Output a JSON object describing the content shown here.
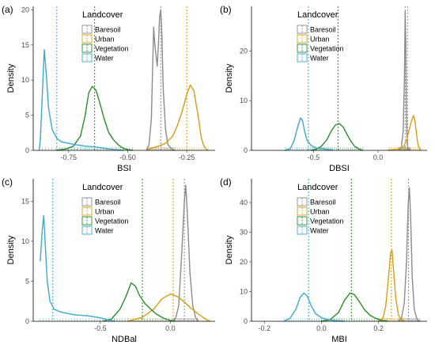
{
  "colors": {
    "Baresoil": "#8c8c8c",
    "Urban": "#d4a017",
    "Vegetation": "#2e8b2e",
    "Water": "#3fa9c9"
  },
  "legend": {
    "title": "Landcover",
    "entries": [
      "Baresoil",
      "Urban",
      "Vegetation",
      "Water"
    ]
  },
  "chart_data": [
    {
      "panel": "(a)",
      "type": "area",
      "xlabel": "BSI",
      "ylabel": "Density",
      "xlim": [
        -0.9,
        -0.13
      ],
      "ylim": [
        0,
        20.5
      ],
      "xticks": [
        -0.75,
        -0.5,
        -0.25
      ],
      "xticklabels": [
        "-0.75",
        "-0.50",
        "-0.25"
      ],
      "yticks": [
        0,
        5,
        10,
        15,
        20
      ],
      "grid": false,
      "legend_position": "top-center",
      "series": [
        {
          "name": "Baresoil",
          "mean": -0.36,
          "points": [
            [
              -0.42,
              0
            ],
            [
              -0.41,
              0.8
            ],
            [
              -0.4,
              4.5
            ],
            [
              -0.395,
              11
            ],
            [
              -0.39,
              17.5
            ],
            [
              -0.385,
              15
            ],
            [
              -0.375,
              12
            ],
            [
              -0.37,
              15
            ],
            [
              -0.365,
              19
            ],
            [
              -0.36,
              20
            ],
            [
              -0.355,
              16
            ],
            [
              -0.35,
              9
            ],
            [
              -0.34,
              3
            ],
            [
              -0.33,
              0.8
            ],
            [
              -0.31,
              0.1
            ],
            [
              -0.3,
              0
            ]
          ]
        },
        {
          "name": "Urban",
          "mean": -0.25,
          "points": [
            [
              -0.42,
              0
            ],
            [
              -0.4,
              0.3
            ],
            [
              -0.37,
              0.6
            ],
            [
              -0.34,
              1
            ],
            [
              -0.31,
              2
            ],
            [
              -0.29,
              3.5
            ],
            [
              -0.27,
              5.5
            ],
            [
              -0.25,
              8
            ],
            [
              -0.235,
              9.3
            ],
            [
              -0.22,
              8.5
            ],
            [
              -0.2,
              4.5
            ],
            [
              -0.19,
              2
            ],
            [
              -0.18,
              0.8
            ],
            [
              -0.17,
              0.2
            ],
            [
              -0.16,
              0
            ]
          ]
        },
        {
          "name": "Vegetation",
          "mean": -0.64,
          "points": [
            [
              -0.8,
              0
            ],
            [
              -0.76,
              0.2
            ],
            [
              -0.73,
              0.6
            ],
            [
              -0.7,
              2
            ],
            [
              -0.68,
              5
            ],
            [
              -0.665,
              8.2
            ],
            [
              -0.65,
              9.1
            ],
            [
              -0.635,
              8.6
            ],
            [
              -0.62,
              7
            ],
            [
              -0.6,
              4.5
            ],
            [
              -0.58,
              2.5
            ],
            [
              -0.56,
              1.5
            ],
            [
              -0.54,
              0.8
            ],
            [
              -0.52,
              0.3
            ],
            [
              -0.5,
              0.1
            ],
            [
              -0.48,
              0
            ]
          ]
        },
        {
          "name": "Water",
          "mean": -0.8,
          "points": [
            [
              -0.875,
              0
            ],
            [
              -0.87,
              1.5
            ],
            [
              -0.86,
              9
            ],
            [
              -0.853,
              14.3
            ],
            [
              -0.845,
              11
            ],
            [
              -0.835,
              6
            ],
            [
              -0.82,
              3
            ],
            [
              -0.8,
              1.7
            ],
            [
              -0.78,
              1.2
            ],
            [
              -0.75,
              1
            ],
            [
              -0.72,
              0.8
            ],
            [
              -0.68,
              0.6
            ],
            [
              -0.64,
              0.5
            ],
            [
              -0.6,
              0.3
            ],
            [
              -0.56,
              0.1
            ],
            [
              -0.52,
              0
            ]
          ]
        }
      ]
    },
    {
      "panel": "(b)",
      "type": "area",
      "xlabel": "DBSI",
      "ylabel": "Density",
      "xlim": [
        -0.98,
        0.38
      ],
      "ylim": [
        0,
        29
      ],
      "xticks": [
        -0.5,
        0.0
      ],
      "xticklabels": [
        "-0.5",
        "0.0"
      ],
      "yticks": [
        0,
        10,
        20
      ],
      "grid": false,
      "legend_position": "top-center",
      "series": [
        {
          "name": "Baresoil",
          "mean": 0.21,
          "points": [
            [
              0.16,
              0
            ],
            [
              0.18,
              0.5
            ],
            [
              0.195,
              4
            ],
            [
              0.205,
              15
            ],
            [
              0.21,
              28
            ],
            [
              0.215,
              22
            ],
            [
              0.22,
              8
            ],
            [
              0.225,
              2
            ],
            [
              0.23,
              0.5
            ],
            [
              0.25,
              0
            ]
          ]
        },
        {
          "name": "Urban",
          "mean": 0.23,
          "points": [
            [
              0.08,
              0
            ],
            [
              0.15,
              0.2
            ],
            [
              0.2,
              0.8
            ],
            [
              0.22,
              2
            ],
            [
              0.24,
              4
            ],
            [
              0.26,
              6
            ],
            [
              0.275,
              7
            ],
            [
              0.285,
              6
            ],
            [
              0.3,
              3
            ],
            [
              0.31,
              1
            ],
            [
              0.33,
              0
            ]
          ]
        },
        {
          "name": "Vegetation",
          "mean": -0.31,
          "points": [
            [
              -0.52,
              0
            ],
            [
              -0.48,
              0.2
            ],
            [
              -0.44,
              0.8
            ],
            [
              -0.4,
              2
            ],
            [
              -0.36,
              4
            ],
            [
              -0.33,
              5.1
            ],
            [
              -0.3,
              5.4
            ],
            [
              -0.27,
              4.7
            ],
            [
              -0.24,
              3.2
            ],
            [
              -0.21,
              1.8
            ],
            [
              -0.18,
              0.8
            ],
            [
              -0.15,
              0.3
            ],
            [
              -0.12,
              0
            ]
          ]
        },
        {
          "name": "Water",
          "mean": -0.54,
          "points": [
            [
              -0.72,
              0
            ],
            [
              -0.68,
              0.3
            ],
            [
              -0.65,
              2
            ],
            [
              -0.62,
              5
            ],
            [
              -0.6,
              6.5
            ],
            [
              -0.585,
              6
            ],
            [
              -0.57,
              4
            ],
            [
              -0.55,
              2
            ],
            [
              -0.52,
              1
            ],
            [
              -0.48,
              0.5
            ],
            [
              -0.42,
              0.3
            ],
            [
              -0.35,
              0
            ]
          ]
        }
      ]
    },
    {
      "panel": "(c)",
      "type": "area",
      "xlabel": "NDBal",
      "ylabel": "Density",
      "xlim": [
        -0.98,
        0.32
      ],
      "ylim": [
        0,
        17.8
      ],
      "xticks": [
        -0.5,
        0.0
      ],
      "xticklabels": [
        "-0.5",
        "0.0"
      ],
      "yticks": [
        0,
        5,
        10,
        15
      ],
      "grid": false,
      "legend_position": "top-center",
      "series": [
        {
          "name": "Baresoil",
          "mean": 0.1,
          "points": [
            [
              0.02,
              0
            ],
            [
              0.04,
              0.5
            ],
            [
              0.06,
              2
            ],
            [
              0.08,
              8
            ],
            [
              0.1,
              15
            ],
            [
              0.11,
              17
            ],
            [
              0.12,
              14
            ],
            [
              0.14,
              6
            ],
            [
              0.16,
              2
            ],
            [
              0.18,
              0.5
            ],
            [
              0.2,
              0
            ]
          ]
        },
        {
          "name": "Urban",
          "mean": 0.02,
          "points": [
            [
              -0.3,
              0
            ],
            [
              -0.2,
              0.5
            ],
            [
              -0.12,
              1.5
            ],
            [
              -0.06,
              2.8
            ],
            [
              0.0,
              3.4
            ],
            [
              0.05,
              3.1
            ],
            [
              0.1,
              2.4
            ],
            [
              0.15,
              1.6
            ],
            [
              0.2,
              0.9
            ],
            [
              0.25,
              0.3
            ],
            [
              0.28,
              0
            ]
          ]
        },
        {
          "name": "Vegetation",
          "mean": -0.2,
          "points": [
            [
              -0.48,
              0
            ],
            [
              -0.42,
              0.3
            ],
            [
              -0.36,
              1.5
            ],
            [
              -0.32,
              3
            ],
            [
              -0.28,
              4.8
            ],
            [
              -0.25,
              4.4
            ],
            [
              -0.22,
              3.2
            ],
            [
              -0.18,
              2.2
            ],
            [
              -0.14,
              1.5
            ],
            [
              -0.1,
              0.9
            ],
            [
              -0.05,
              0.4
            ],
            [
              0.0,
              0.1
            ],
            [
              0.03,
              0
            ]
          ]
        },
        {
          "name": "Water",
          "mean": -0.84,
          "points": [
            [
              -0.93,
              7.5
            ],
            [
              -0.915,
              11.5
            ],
            [
              -0.905,
              13.2
            ],
            [
              -0.895,
              10
            ],
            [
              -0.88,
              5
            ],
            [
              -0.86,
              2.5
            ],
            [
              -0.83,
              1.5
            ],
            [
              -0.79,
              1.2
            ],
            [
              -0.74,
              1
            ],
            [
              -0.68,
              0.8
            ],
            [
              -0.6,
              0.7
            ],
            [
              -0.52,
              0.5
            ],
            [
              -0.45,
              0.2
            ],
            [
              -0.4,
              0
            ]
          ]
        }
      ]
    },
    {
      "panel": "(d)",
      "type": "area",
      "xlabel": "MBI",
      "ylabel": "Density",
      "xlim": [
        -0.245,
        0.37
      ],
      "ylim": [
        0,
        48
      ],
      "xticks": [
        -0.2,
        0.0,
        0.2
      ],
      "xticklabels": [
        "-0.2",
        "0.0",
        "0.2"
      ],
      "yticks": [
        0,
        10,
        20,
        30,
        40
      ],
      "grid": false,
      "legend_position": "top-center",
      "series": [
        {
          "name": "Baresoil",
          "mean": 0.305,
          "points": [
            [
              0.27,
              0
            ],
            [
              0.28,
              1
            ],
            [
              0.29,
              6
            ],
            [
              0.298,
              20
            ],
            [
              0.304,
              40
            ],
            [
              0.308,
              45
            ],
            [
              0.312,
              36
            ],
            [
              0.318,
              15
            ],
            [
              0.325,
              4
            ],
            [
              0.335,
              0.5
            ],
            [
              0.345,
              0
            ]
          ]
        },
        {
          "name": "Urban",
          "mean": 0.245,
          "points": [
            [
              0.2,
              0
            ],
            [
              0.215,
              1
            ],
            [
              0.225,
              5
            ],
            [
              0.235,
              15
            ],
            [
              0.242,
              23
            ],
            [
              0.247,
              24
            ],
            [
              0.252,
              18
            ],
            [
              0.26,
              8
            ],
            [
              0.27,
              2
            ],
            [
              0.28,
              0.5
            ],
            [
              0.29,
              0
            ]
          ]
        },
        {
          "name": "Vegetation",
          "mean": 0.105,
          "points": [
            [
              0.0,
              0
            ],
            [
              0.03,
              0.5
            ],
            [
              0.06,
              3
            ],
            [
              0.08,
              7
            ],
            [
              0.1,
              9.5
            ],
            [
              0.115,
              9
            ],
            [
              0.13,
              7
            ],
            [
              0.15,
              4
            ],
            [
              0.17,
              2
            ],
            [
              0.19,
              1
            ],
            [
              0.21,
              0.3
            ],
            [
              0.23,
              0
            ]
          ]
        },
        {
          "name": "Water",
          "mean": -0.045,
          "points": [
            [
              -0.13,
              0
            ],
            [
              -0.11,
              1
            ],
            [
              -0.09,
              4
            ],
            [
              -0.075,
              8
            ],
            [
              -0.062,
              9.5
            ],
            [
              -0.05,
              8.5
            ],
            [
              -0.035,
              5
            ],
            [
              -0.02,
              2.5
            ],
            [
              0.0,
              1.2
            ],
            [
              0.02,
              0.6
            ],
            [
              0.05,
              0.2
            ],
            [
              0.08,
              0
            ]
          ]
        }
      ]
    }
  ]
}
